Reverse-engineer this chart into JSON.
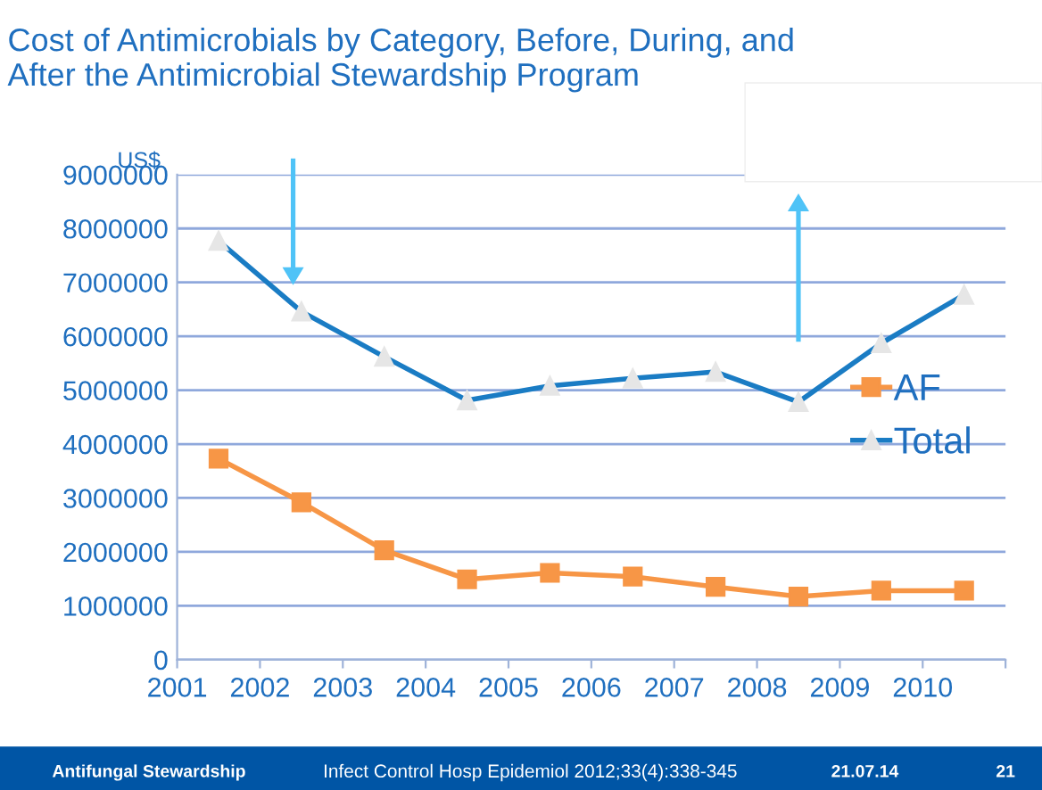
{
  "chart_data": {
    "type": "line",
    "title": "Cost of Antimicrobials by Category, Before, During, and After the Antimicrobial Stewardship Program",
    "ylabel": "US$",
    "x": [
      2001.5,
      2002.5,
      2003.5,
      2004.5,
      2005.5,
      2006.5,
      2007.5,
      2008.5,
      2009.5,
      2010.5
    ],
    "series": [
      {
        "name": "AF",
        "color": "#f79646",
        "marker": "square",
        "values": [
          3730000,
          2920000,
          2030000,
          1490000,
          1610000,
          1540000,
          1350000,
          1170000,
          1280000,
          1280000
        ]
      },
      {
        "name": "Total",
        "color": "#1a7cc4",
        "marker": "triangle",
        "values": [
          7770000,
          6460000,
          5620000,
          4810000,
          5080000,
          5220000,
          5340000,
          4780000,
          5870000,
          6770000
        ]
      }
    ],
    "xlim": [
      2001,
      2011
    ],
    "xticks": [
      2001,
      2002,
      2003,
      2004,
      2005,
      2006,
      2007,
      2008,
      2009,
      2010,
      {
        "value": 2011,
        "label": null
      }
    ],
    "ylim": [
      0,
      9000000
    ],
    "yticks": [
      0,
      1000000,
      2000000,
      3000000,
      4000000,
      5000000,
      6000000,
      7000000,
      8000000,
      9000000
    ],
    "grid": "y",
    "legend": "right",
    "line_style": "solid",
    "annotations": [
      "Antifungal Stewardship",
      "Infect Control Hosp Epidemiol 2012;33(4):338-345",
      "21.07.14",
      "21"
    ]
  }
}
